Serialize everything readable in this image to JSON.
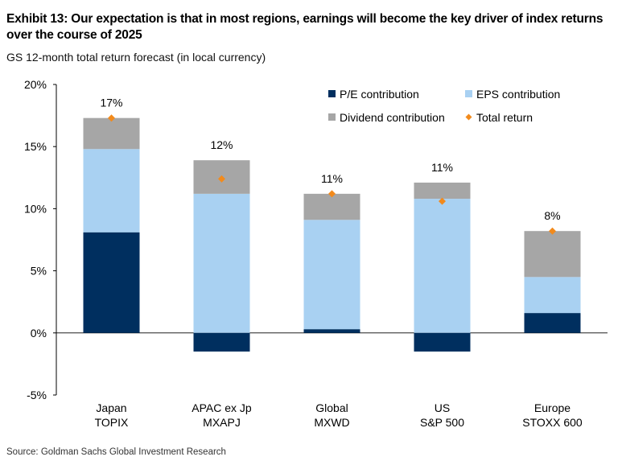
{
  "title": "Exhibit 13: Our expectation is that in most regions, earnings will become the key driver of index returns over the course of 2025",
  "subtitle": "GS 12-month total return forecast (in local currency)",
  "source": "Source: Goldman Sachs Global Investment Research",
  "chart_data": {
    "type": "bar",
    "stacked": true,
    "categories": [
      [
        "Japan",
        "TOPIX"
      ],
      [
        "APAC ex Jp",
        "MXAPJ"
      ],
      [
        "Global",
        "MXWD"
      ],
      [
        "US",
        "S&P 500"
      ],
      [
        "Europe",
        "STOXX 600"
      ]
    ],
    "series": [
      {
        "name": "P/E contribution",
        "color": "#002f5f",
        "values": [
          8.1,
          -1.5,
          0.3,
          -1.5,
          1.6
        ]
      },
      {
        "name": "EPS contribution",
        "color": "#a9d1f2",
        "values": [
          6.7,
          11.2,
          8.8,
          10.8,
          2.9
        ]
      },
      {
        "name": "Dividend contribution",
        "color": "#a6a6a6",
        "values": [
          2.5,
          2.7,
          2.1,
          1.3,
          3.7
        ]
      }
    ],
    "total_return": {
      "name": "Total return",
      "color": "#f28a1c",
      "values": [
        17.3,
        12.4,
        11.2,
        10.6,
        8.2
      ]
    },
    "data_labels": [
      "17%",
      "12%",
      "11%",
      "11%",
      "8%"
    ],
    "y_ticks": [
      "20%",
      "15%",
      "10%",
      "5%",
      "0%",
      "-5%"
    ],
    "y_tick_values": [
      20,
      15,
      10,
      5,
      0,
      -5
    ],
    "ylim": [
      -5,
      20
    ],
    "legend_position": "top-right"
  }
}
